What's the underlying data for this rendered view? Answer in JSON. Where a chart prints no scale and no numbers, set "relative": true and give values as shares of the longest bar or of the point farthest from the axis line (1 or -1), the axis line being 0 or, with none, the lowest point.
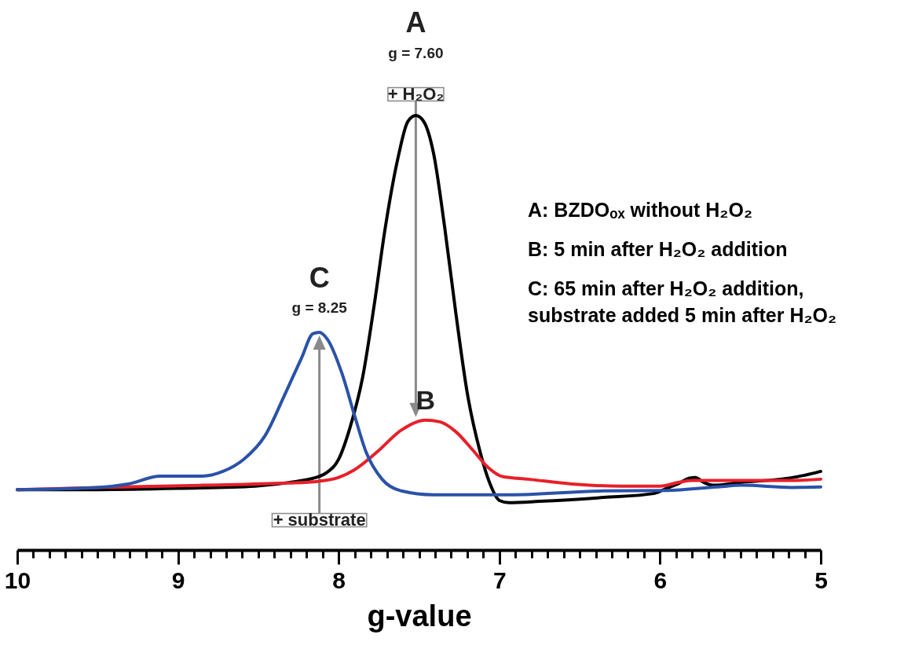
{
  "chart_data": {
    "type": "line",
    "relative": true,
    "xlabel": "g-value",
    "xlim": [
      10,
      5
    ],
    "xticks": [
      10,
      {
        "value": 9.9,
        "label": null
      },
      {
        "value": 9.8,
        "label": null
      },
      {
        "value": 9.7,
        "label": null
      },
      {
        "value": 9.6,
        "label": null
      },
      {
        "value": 9.5,
        "label": null
      },
      {
        "value": 9.4,
        "label": null
      },
      {
        "value": 9.3,
        "label": null
      },
      {
        "value": 9.2,
        "label": null
      },
      {
        "value": 9.1,
        "label": null
      },
      9,
      {
        "value": 8.9,
        "label": null
      },
      {
        "value": 8.8,
        "label": null
      },
      {
        "value": 8.7,
        "label": null
      },
      {
        "value": 8.6,
        "label": null
      },
      {
        "value": 8.5,
        "label": null
      },
      {
        "value": 8.4,
        "label": null
      },
      {
        "value": 8.3,
        "label": null
      },
      {
        "value": 8.2,
        "label": null
      },
      {
        "value": 8.1,
        "label": null
      },
      8,
      {
        "value": 7.9,
        "label": null
      },
      {
        "value": 7.8,
        "label": null
      },
      {
        "value": 7.7,
        "label": null
      },
      {
        "value": 7.6,
        "label": null
      },
      {
        "value": 7.5,
        "label": null
      },
      {
        "value": 7.4,
        "label": null
      },
      {
        "value": 7.3,
        "label": null
      },
      {
        "value": 7.2,
        "label": null
      },
      {
        "value": 7.1,
        "label": null
      },
      7,
      {
        "value": 6.9,
        "label": null
      },
      {
        "value": 6.8,
        "label": null
      },
      {
        "value": 6.7,
        "label": null
      },
      {
        "value": 6.6,
        "label": null
      },
      {
        "value": 6.5,
        "label": null
      },
      {
        "value": 6.4,
        "label": null
      },
      {
        "value": 6.3,
        "label": null
      },
      {
        "value": 6.2,
        "label": null
      },
      {
        "value": 6.1,
        "label": null
      },
      6,
      {
        "value": 5.9,
        "label": null
      },
      {
        "value": 5.8,
        "label": null
      },
      {
        "value": 5.7,
        "label": null
      },
      {
        "value": 5.6,
        "label": null
      },
      {
        "value": 5.5,
        "label": null
      },
      {
        "value": 5.4,
        "label": null
      },
      {
        "value": 5.3,
        "label": null
      },
      {
        "value": 5.2,
        "label": null
      },
      {
        "value": 5.1,
        "label": null
      },
      5
    ],
    "series": [
      {
        "color": "#000000",
        "x": [
          10,
          9.5,
          8.98,
          8.52,
          8.26,
          8.16,
          8.08,
          8.0,
          7.93,
          7.85,
          7.78,
          7.71,
          7.63,
          7.57,
          7.52,
          7.47,
          7.41,
          7.34,
          7.27,
          7.2,
          7.12,
          7.06,
          7.0,
          6.94,
          6.75,
          6.35,
          6.04,
          5.96,
          5.88,
          5.82,
          5.78,
          5.73,
          5.67,
          5.49,
          5.25,
          5.1,
          5.0
        ],
        "values": [
          0.139,
          0.139,
          0.142,
          0.147,
          0.158,
          0.165,
          0.177,
          0.209,
          0.281,
          0.399,
          0.561,
          0.742,
          0.904,
          0.986,
          1,
          0.986,
          0.914,
          0.742,
          0.543,
          0.362,
          0.226,
          0.154,
          0.114,
          0.109,
          0.112,
          0.121,
          0.13,
          0.142,
          0.154,
          0.165,
          0.167,
          0.156,
          0.149,
          0.156,
          0.163,
          0.172,
          0.181
        ]
      },
      {
        "color": "#e8202a",
        "x": [
          10,
          9.5,
          8.85,
          8.33,
          8.13,
          8.0,
          7.9,
          7.76,
          7.61,
          7.46,
          7.37,
          7.27,
          7.17,
          7.07,
          6.98,
          6.82,
          6.55,
          6.24,
          6.0,
          5.88,
          5.8,
          5.57,
          5.18,
          5.0
        ],
        "values": [
          0.139,
          0.144,
          0.149,
          0.154,
          0.158,
          0.167,
          0.185,
          0.226,
          0.276,
          0.299,
          0.295,
          0.272,
          0.232,
          0.19,
          0.169,
          0.163,
          0.152,
          0.147,
          0.147,
          0.156,
          0.16,
          0.16,
          0.16,
          0.163
        ]
      },
      {
        "color": "#2a52a8",
        "x": [
          10,
          9.5,
          9.31,
          9.11,
          8.85,
          8.72,
          8.59,
          8.46,
          8.33,
          8.23,
          8.16,
          8.12,
          8.07,
          7.98,
          7.9,
          7.83,
          7.73,
          7.61,
          7.41,
          6.94,
          6.35,
          5.96,
          5.65,
          5.49,
          5.18,
          5.0
        ],
        "values": [
          0.139,
          0.144,
          0.152,
          0.17,
          0.17,
          0.181,
          0.209,
          0.262,
          0.362,
          0.443,
          0.498,
          0.501,
          0.485,
          0.407,
          0.308,
          0.226,
          0.163,
          0.136,
          0.127,
          0.127,
          0.136,
          0.137,
          0.145,
          0.149,
          0.144,
          0.145
        ]
      }
    ],
    "annotations": [
      "A",
      "g = 7.60",
      "+ H₂O₂",
      "C",
      "g = 8.25",
      "B",
      "+ substrate",
      "A: BZDOₒₓ without H₂O₂",
      "B: 5 min after H₂O₂ addition",
      "C: 65 min after H₂O₂ addition,\nsubstrate added 5 min after H₂O₂"
    ]
  }
}
